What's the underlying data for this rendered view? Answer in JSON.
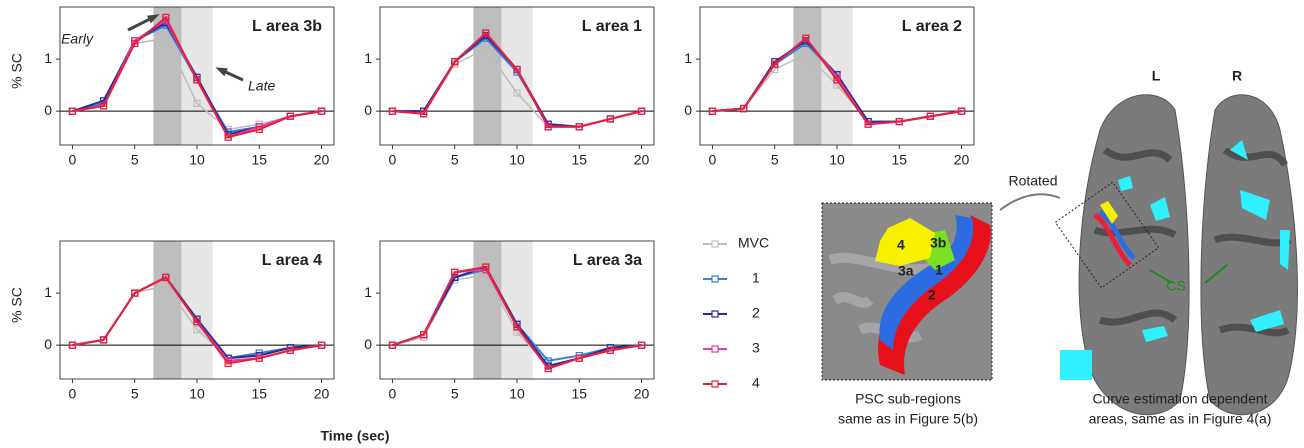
{
  "chart_data": [
    {
      "type": "line",
      "title": "L area 3b",
      "y_label": "% SC",
      "x": [
        0,
        2.5,
        5,
        7.5,
        10,
        12.5,
        15,
        17.5,
        20
      ],
      "xlim": [
        -1,
        21
      ],
      "ylim": [
        -0.65,
        2.0
      ],
      "xticks": [
        0,
        5,
        10,
        15,
        20
      ],
      "yticks": [
        0,
        1
      ],
      "hline": 0,
      "shaded": [
        {
          "x": [
            6.5,
            8.75
          ],
          "color": "#bdbdbd"
        },
        {
          "x": [
            8.75,
            11.25
          ],
          "color": "#e6e6e6"
        }
      ],
      "annotations": [
        "Early",
        "Late"
      ],
      "series": [
        {
          "name": "MVC",
          "color": "#bdbdbd",
          "values": [
            0,
            0.1,
            1.3,
            1.4,
            0.15,
            -0.35,
            -0.25,
            -0.1,
            0
          ]
        },
        {
          "name": "1",
          "color": "#3b7fd9",
          "values": [
            0,
            0.15,
            1.35,
            1.65,
            0.6,
            -0.4,
            -0.3,
            -0.1,
            0
          ]
        },
        {
          "name": "2",
          "color": "#2a2aa0",
          "values": [
            0,
            0.2,
            1.35,
            1.7,
            0.65,
            -0.45,
            -0.3,
            -0.1,
            0
          ]
        },
        {
          "name": "3",
          "color": "#e040a0",
          "values": [
            0,
            0.1,
            1.35,
            1.75,
            0.6,
            -0.5,
            -0.3,
            -0.1,
            0
          ]
        },
        {
          "name": "4",
          "color": "#e8203a",
          "values": [
            0,
            0.1,
            1.3,
            1.8,
            0.6,
            -0.5,
            -0.35,
            -0.1,
            0
          ]
        }
      ]
    },
    {
      "type": "line",
      "title": "L area 1",
      "x": [
        0,
        2.5,
        5,
        7.5,
        10,
        12.5,
        15,
        17.5,
        20
      ],
      "xlim": [
        -1,
        21
      ],
      "ylim": [
        -0.65,
        2.0
      ],
      "xticks": [
        0,
        5,
        10,
        15,
        20
      ],
      "yticks": [
        0,
        1
      ],
      "hline": 0,
      "shaded": [
        {
          "x": [
            6.5,
            8.75
          ],
          "color": "#bdbdbd"
        },
        {
          "x": [
            8.75,
            11.25
          ],
          "color": "#e6e6e6"
        }
      ],
      "series": [
        {
          "name": "MVC",
          "color": "#bdbdbd",
          "values": [
            0,
            -0.05,
            0.9,
            1.2,
            0.35,
            -0.3,
            -0.3,
            -0.15,
            0
          ]
        },
        {
          "name": "1",
          "color": "#3b7fd9",
          "values": [
            0,
            0,
            0.95,
            1.4,
            0.75,
            -0.25,
            -0.3,
            -0.15,
            0
          ]
        },
        {
          "name": "2",
          "color": "#2a2aa0",
          "values": [
            0,
            0,
            0.95,
            1.45,
            0.8,
            -0.25,
            -0.3,
            -0.15,
            0
          ]
        },
        {
          "name": "3",
          "color": "#e040a0",
          "values": [
            0,
            -0.05,
            0.95,
            1.5,
            0.8,
            -0.3,
            -0.3,
            -0.15,
            0
          ]
        },
        {
          "name": "4",
          "color": "#e8203a",
          "values": [
            0,
            -0.05,
            0.95,
            1.5,
            0.8,
            -0.3,
            -0.3,
            -0.15,
            0
          ]
        }
      ]
    },
    {
      "type": "line",
      "title": "L area 2",
      "x": [
        0,
        2.5,
        5,
        7.5,
        10,
        12.5,
        15,
        17.5,
        20
      ],
      "xlim": [
        -1,
        21
      ],
      "ylim": [
        -0.65,
        2.0
      ],
      "xticks": [
        0,
        5,
        10,
        15,
        20
      ],
      "yticks": [
        0,
        1
      ],
      "hline": 0,
      "shaded": [
        {
          "x": [
            6.5,
            8.75
          ],
          "color": "#bdbdbd"
        },
        {
          "x": [
            8.75,
            11.25
          ],
          "color": "#e6e6e6"
        }
      ],
      "series": [
        {
          "name": "MVC",
          "color": "#bdbdbd",
          "values": [
            0,
            0.05,
            0.8,
            1.1,
            0.5,
            -0.2,
            -0.2,
            -0.1,
            0
          ]
        },
        {
          "name": "1",
          "color": "#3b7fd9",
          "values": [
            0,
            0.05,
            0.9,
            1.3,
            0.7,
            -0.2,
            -0.2,
            -0.1,
            0
          ]
        },
        {
          "name": "2",
          "color": "#2a2aa0",
          "values": [
            0,
            0.05,
            0.95,
            1.35,
            0.7,
            -0.2,
            -0.2,
            -0.1,
            0
          ]
        },
        {
          "name": "3",
          "color": "#e040a0",
          "values": [
            0,
            0.05,
            0.9,
            1.4,
            0.65,
            -0.25,
            -0.2,
            -0.1,
            0
          ]
        },
        {
          "name": "4",
          "color": "#e8203a",
          "values": [
            0,
            0.05,
            0.9,
            1.4,
            0.6,
            -0.25,
            -0.2,
            -0.1,
            0
          ]
        }
      ]
    },
    {
      "type": "line",
      "title": "L area 4",
      "y_label": "% SC",
      "x": [
        0,
        2.5,
        5,
        7.5,
        10,
        12.5,
        15,
        17.5,
        20
      ],
      "xlim": [
        -1,
        21
      ],
      "ylim": [
        -0.65,
        2.0
      ],
      "xticks": [
        0,
        5,
        10,
        15,
        20
      ],
      "yticks": [
        0,
        1
      ],
      "hline": 0,
      "shaded": [
        {
          "x": [
            6.5,
            8.75
          ],
          "color": "#bdbdbd"
        },
        {
          "x": [
            8.75,
            11.25
          ],
          "color": "#e6e6e6"
        }
      ],
      "series": [
        {
          "name": "MVC",
          "color": "#bdbdbd",
          "values": [
            0,
            0.1,
            1.0,
            1.15,
            0.3,
            -0.25,
            -0.2,
            -0.05,
            0
          ]
        },
        {
          "name": "1",
          "color": "#3b7fd9",
          "values": [
            0,
            0.1,
            1.0,
            1.3,
            0.5,
            -0.25,
            -0.15,
            -0.05,
            0
          ]
        },
        {
          "name": "2",
          "color": "#2a2aa0",
          "values": [
            0,
            0.1,
            1.0,
            1.3,
            0.5,
            -0.25,
            -0.2,
            -0.05,
            0
          ]
        },
        {
          "name": "3",
          "color": "#e040a0",
          "values": [
            0,
            0.1,
            1.0,
            1.3,
            0.45,
            -0.3,
            -0.25,
            -0.1,
            0
          ]
        },
        {
          "name": "4",
          "color": "#e8203a",
          "values": [
            0,
            0.1,
            1.0,
            1.3,
            0.45,
            -0.35,
            -0.25,
            -0.1,
            0
          ]
        }
      ]
    },
    {
      "type": "line",
      "title": "L area 3a",
      "x": [
        0,
        2.5,
        5,
        7.5,
        10,
        12.5,
        15,
        17.5,
        20
      ],
      "xlim": [
        -1,
        21
      ],
      "ylim": [
        -0.65,
        2.0
      ],
      "xticks": [
        0,
        5,
        10,
        15,
        20
      ],
      "yticks": [
        0,
        1
      ],
      "hline": 0,
      "shaded": [
        {
          "x": [
            6.5,
            8.75
          ],
          "color": "#bdbdbd"
        },
        {
          "x": [
            8.75,
            11.25
          ],
          "color": "#e6e6e6"
        }
      ],
      "series": [
        {
          "name": "MVC",
          "color": "#bdbdbd",
          "values": [
            0,
            0.15,
            1.25,
            1.35,
            0.25,
            -0.4,
            -0.25,
            -0.05,
            0
          ]
        },
        {
          "name": "1",
          "color": "#3b7fd9",
          "values": [
            0,
            0.2,
            1.3,
            1.45,
            0.4,
            -0.3,
            -0.2,
            -0.05,
            0
          ]
        },
        {
          "name": "2",
          "color": "#2a2aa0",
          "values": [
            0,
            0.2,
            1.3,
            1.5,
            0.4,
            -0.4,
            -0.25,
            -0.05,
            0
          ]
        },
        {
          "name": "3",
          "color": "#e040a0",
          "values": [
            0,
            0.2,
            1.4,
            1.45,
            0.35,
            -0.45,
            -0.25,
            -0.1,
            0
          ]
        },
        {
          "name": "4",
          "color": "#e8203a",
          "values": [
            0,
            0.2,
            1.4,
            1.5,
            0.35,
            -0.45,
            -0.25,
            -0.1,
            0
          ]
        }
      ]
    }
  ],
  "x_label": "Time (sec)",
  "figure": {
    "hemisphere_left": "L",
    "hemisphere_right": "R",
    "rotated": "Rotated",
    "sulcus": "CS",
    "regions": [
      "4",
      "3b",
      "3a",
      "1",
      "2"
    ],
    "inset_caption": [
      "PSC sub-regions",
      "same as in Figure 5(b)"
    ],
    "area_caption": [
      "Curve estimation dependent",
      "areas, same as in Figure 4(a)"
    ]
  }
}
